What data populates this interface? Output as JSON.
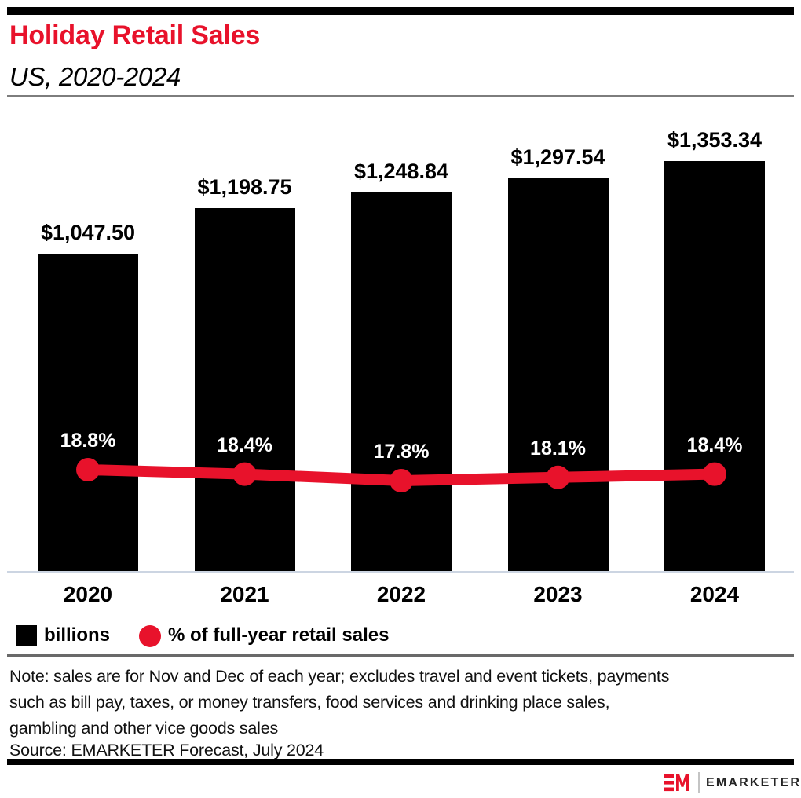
{
  "header": {
    "title": "Holiday Retail Sales",
    "subtitle": "US, 2020-2024"
  },
  "chart_data": {
    "type": "combo",
    "title": "Holiday Retail Sales",
    "subtitle": "US, 2020-2024",
    "categories": [
      "2020",
      "2021",
      "2022",
      "2023",
      "2024"
    ],
    "series": [
      {
        "name": "billions",
        "type": "bar",
        "unit": "USD billions",
        "values": [
          1047.5,
          1198.75,
          1248.84,
          1297.54,
          1353.34
        ],
        "labels": [
          "$1,047.50",
          "$1,198.75",
          "$1,248.84",
          "$1,297.54",
          "$1,353.34"
        ]
      },
      {
        "name": "% of full-year retail sales",
        "type": "line",
        "unit": "%",
        "values": [
          18.8,
          18.4,
          17.8,
          18.1,
          18.4
        ],
        "labels": [
          "18.8%",
          "18.4%",
          "17.8%",
          "18.1%",
          "18.4%"
        ]
      }
    ],
    "ylim_bar": [
      0,
      1460
    ],
    "grid": false,
    "legend_position": "bottom"
  },
  "legend": {
    "items": [
      {
        "label": "billions",
        "swatch": "black-square"
      },
      {
        "label": "% of full-year retail sales",
        "swatch": "red-circle"
      }
    ]
  },
  "note": {
    "lines": [
      "Note: sales are for Nov and Dec of each year; excludes travel and event tickets, payments",
      "such as bill pay, taxes, or money transfers, food services and drinking place sales,",
      "gambling and other vice goods sales"
    ]
  },
  "source": {
    "text": "Source: EMARKETER Forecast, July 2024"
  },
  "footer": {
    "brand": "EMARKETER",
    "monogram": "EM"
  },
  "colors": {
    "accent_red": "#E8122B",
    "bar_black": "#000000",
    "axis_line": "#ccd5e2",
    "rule_dark": "#696969"
  }
}
